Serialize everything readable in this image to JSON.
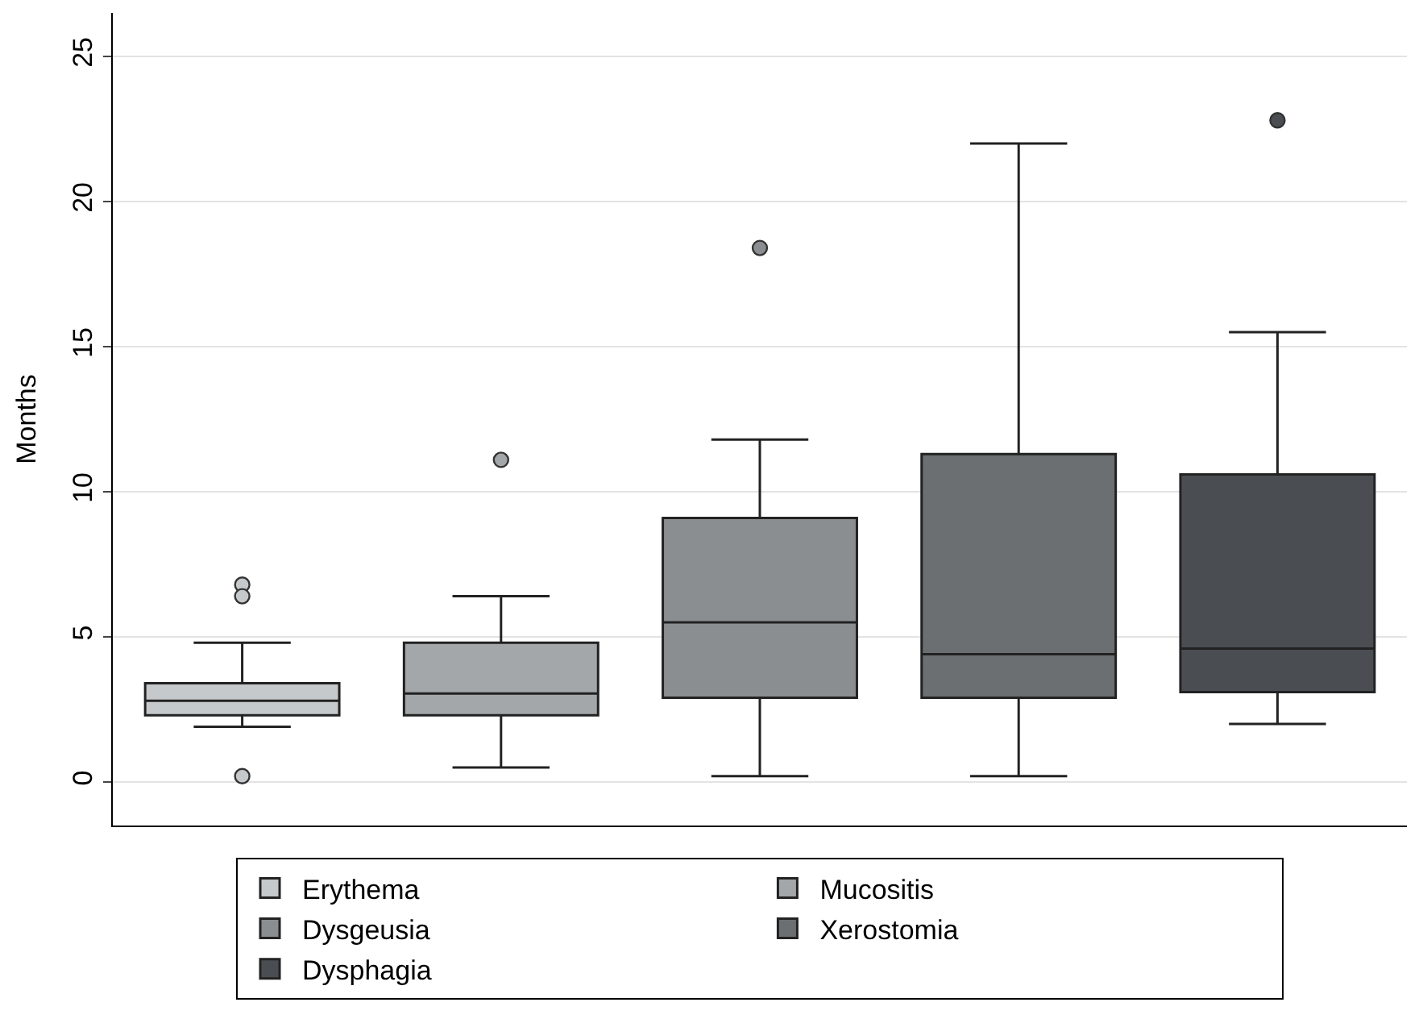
{
  "chart_data": {
    "type": "box",
    "ylabel": "Months",
    "categories": [
      null
    ],
    "series": [
      {
        "name": "Erythema",
        "color": "#c6c9cb",
        "boxes": [
          {
            "low": 1.9,
            "q1": 2.3,
            "median": 2.8,
            "q3": 3.4,
            "high": 4.8,
            "outliers": [
              6.8,
              6.4,
              0.2
            ]
          }
        ]
      },
      {
        "name": "Mucositis",
        "color": "#a4a7a9",
        "boxes": [
          {
            "low": 0.5,
            "q1": 2.3,
            "median": 3.05,
            "q3": 4.8,
            "high": 6.4,
            "outliers": [
              11.1
            ]
          }
        ]
      },
      {
        "name": "Dysgeusia",
        "color": "#8a8e90",
        "boxes": [
          {
            "low": 0.2,
            "q1": 2.9,
            "median": 5.5,
            "q3": 9.1,
            "high": 11.8,
            "outliers": [
              18.4
            ]
          }
        ]
      },
      {
        "name": "Xerostomia",
        "color": "#6b6f72",
        "boxes": [
          {
            "low": 0.2,
            "q1": 2.9,
            "median": 4.4,
            "q3": 11.3,
            "high": 22.0
          }
        ]
      },
      {
        "name": "Dysphagia",
        "color": "#4a4e52",
        "boxes": [
          {
            "low": 2.0,
            "q1": 3.1,
            "median": 4.6,
            "q3": 10.6,
            "high": 15.5,
            "outliers": [
              22.8
            ]
          }
        ]
      }
    ],
    "ylim": [
      -1.5,
      26.5
    ],
    "yticks": [
      0,
      5,
      10,
      15,
      20,
      25
    ],
    "grid": "y",
    "legend": "bottom",
    "tick_labels": "y"
  }
}
